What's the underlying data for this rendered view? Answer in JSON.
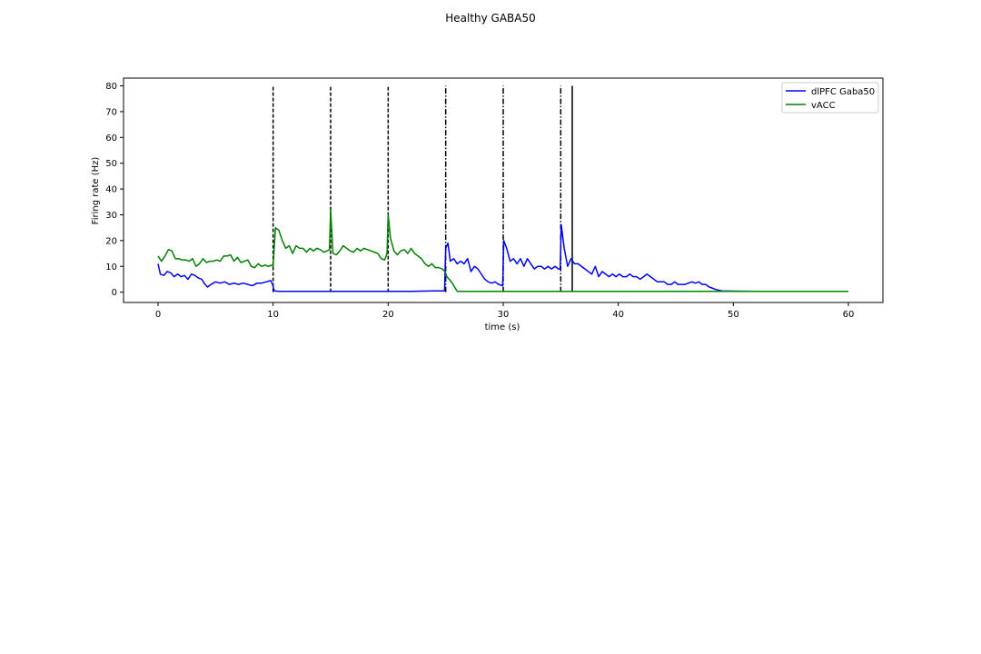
{
  "figure": {
    "title": "Healthy GABA50"
  },
  "chart_data": {
    "type": "line",
    "title": "Healthy GABA50",
    "xlabel": "time (s)",
    "ylabel": "Firing rate (Hz)",
    "xlim": [
      -3,
      63
    ],
    "ylim": [
      -4,
      83
    ],
    "xticks": [
      0,
      10,
      20,
      30,
      40,
      50,
      60
    ],
    "yticks": [
      0,
      10,
      20,
      30,
      40,
      50,
      60,
      70,
      80
    ],
    "grid": false,
    "legend_position": "top-right",
    "series": [
      {
        "name": "dlPFC Gaba50",
        "color": "#0000ff",
        "x": [
          0,
          0.2,
          0.5,
          0.8,
          1.1,
          1.4,
          1.7,
          2.0,
          2.3,
          2.6,
          2.9,
          3.2,
          3.5,
          3.8,
          4.0,
          4.3,
          4.6,
          5.0,
          5.4,
          5.8,
          6.2,
          6.6,
          7.0,
          7.4,
          7.8,
          8.2,
          8.6,
          9.0,
          9.4,
          9.8,
          9.95,
          10.1,
          10.5,
          12,
          14,
          16,
          18,
          20,
          22,
          24,
          24.9,
          25.0,
          25.2,
          25.4,
          25.7,
          26.0,
          26.3,
          26.6,
          26.9,
          27.2,
          27.5,
          27.8,
          28.1,
          28.4,
          28.7,
          29.0,
          29.3,
          29.6,
          29.95,
          30.05,
          30.3,
          30.6,
          30.9,
          31.2,
          31.5,
          31.8,
          32.1,
          32.4,
          32.7,
          33.0,
          33.3,
          33.6,
          33.9,
          34.2,
          34.5,
          34.8,
          34.95,
          35.05,
          35.3,
          35.6,
          35.9,
          36.2,
          36.5,
          36.8,
          37.1,
          37.4,
          37.7,
          38.0,
          38.3,
          38.6,
          38.9,
          39.2,
          39.5,
          39.8,
          40.1,
          40.4,
          40.7,
          41.0,
          41.3,
          41.6,
          41.9,
          42.2,
          42.5,
          42.8,
          43.1,
          43.4,
          43.7,
          44.0,
          44.3,
          44.6,
          44.9,
          45.2,
          45.5,
          45.8,
          46.1,
          46.4,
          46.7,
          47.0,
          47.3,
          47.6,
          47.9,
          48.2,
          48.5,
          49.0,
          50,
          52,
          54,
          56,
          58,
          60
        ],
        "y": [
          11,
          7,
          6.5,
          8,
          7.5,
          6,
          7,
          6,
          6.5,
          5,
          7,
          6.5,
          5.5,
          5,
          3.5,
          2,
          3,
          4,
          3.5,
          4,
          3,
          3.5,
          3,
          3.5,
          3,
          2.5,
          3.5,
          3.5,
          4,
          4.5,
          3,
          0.5,
          0.3,
          0.3,
          0.3,
          0.3,
          0.3,
          0.3,
          0.3,
          0.5,
          0.5,
          17,
          19,
          12,
          13,
          11,
          12,
          11,
          13,
          8,
          10,
          9,
          7,
          5,
          4,
          3.5,
          4,
          3,
          2.5,
          20,
          17,
          12,
          13,
          11,
          13,
          10,
          13,
          11,
          9,
          10,
          10,
          9,
          10,
          9,
          10,
          9,
          9,
          26,
          17,
          10,
          13,
          11,
          11,
          10,
          9,
          8,
          7,
          10,
          6,
          8,
          7,
          6,
          7,
          6,
          7,
          6,
          6,
          7,
          6,
          6,
          5,
          6,
          7,
          6,
          5,
          4,
          4,
          4,
          3,
          3,
          4,
          3,
          3,
          3,
          3.5,
          4,
          3.5,
          4,
          3,
          3,
          2,
          1.5,
          1,
          0.5,
          0.4,
          0.3,
          0.3,
          0.3,
          0.3,
          0.3
        ],
        "vertical_markers": [
          {
            "x": 10,
            "ymin": 0,
            "ymax": 80,
            "style": "dashed"
          },
          {
            "x": 15,
            "ymin": 0,
            "ymax": 80,
            "style": "dashed"
          },
          {
            "x": 20,
            "ymin": 0,
            "ymax": 80,
            "style": "dashed"
          },
          {
            "x": 25,
            "ymin": 0,
            "ymax": 80,
            "style": "dashdot"
          },
          {
            "x": 30,
            "ymin": 0,
            "ymax": 80,
            "style": "dashdot"
          },
          {
            "x": 35,
            "ymin": 0,
            "ymax": 80,
            "style": "dashdot"
          },
          {
            "x": 36,
            "ymin": 0,
            "ymax": 80,
            "style": "solid"
          }
        ]
      },
      {
        "name": "vACC",
        "color": "#008000",
        "x": [
          0,
          0.3,
          0.6,
          0.9,
          1.2,
          1.5,
          1.8,
          2.1,
          2.4,
          2.7,
          3.0,
          3.3,
          3.6,
          3.9,
          4.2,
          4.5,
          4.8,
          5.1,
          5.4,
          5.7,
          6.0,
          6.3,
          6.6,
          6.9,
          7.2,
          7.5,
          7.8,
          8.1,
          8.4,
          8.7,
          9.0,
          9.3,
          9.6,
          9.9,
          10.0,
          10.2,
          10.5,
          10.8,
          11.1,
          11.4,
          11.7,
          12.0,
          12.3,
          12.6,
          12.9,
          13.2,
          13.5,
          13.8,
          14.1,
          14.4,
          14.7,
          14.9,
          15.0,
          15.2,
          15.5,
          15.8,
          16.1,
          16.4,
          16.7,
          17.0,
          17.3,
          17.6,
          17.9,
          18.2,
          18.5,
          18.8,
          19.1,
          19.4,
          19.7,
          19.9,
          20.0,
          20.2,
          20.5,
          20.8,
          21.1,
          21.4,
          21.7,
          22.0,
          22.3,
          22.6,
          22.9,
          23.2,
          23.5,
          23.8,
          24.1,
          24.4,
          24.7,
          24.95,
          25.1,
          25.5,
          26,
          28,
          30,
          35,
          40,
          45,
          50,
          55,
          60
        ],
        "y": [
          14,
          12,
          14,
          16.5,
          16,
          13,
          13,
          12.5,
          12.5,
          12,
          13,
          10,
          11,
          13,
          11.5,
          12,
          12,
          12.5,
          12,
          14,
          14,
          14.5,
          12,
          13.5,
          11.5,
          12,
          12.5,
          10,
          9.5,
          11,
          10,
          10.5,
          10,
          10.5,
          10,
          25,
          24,
          20,
          17,
          18,
          15,
          18,
          17,
          17,
          15.5,
          17,
          16,
          17,
          16.5,
          15.5,
          16,
          16.5,
          32,
          15,
          14.5,
          16,
          18,
          17,
          16,
          15.5,
          17,
          16,
          17,
          16.5,
          16,
          15.5,
          15,
          13,
          12.5,
          15,
          30,
          21,
          16,
          14.5,
          16,
          16.5,
          15,
          17,
          15,
          14,
          13,
          11,
          10,
          11,
          9.5,
          9.5,
          9,
          8,
          6,
          4,
          0.3,
          0.3,
          0.3,
          0.3,
          0.3,
          0.3,
          0.3,
          0.3,
          0.3
        ]
      }
    ]
  }
}
